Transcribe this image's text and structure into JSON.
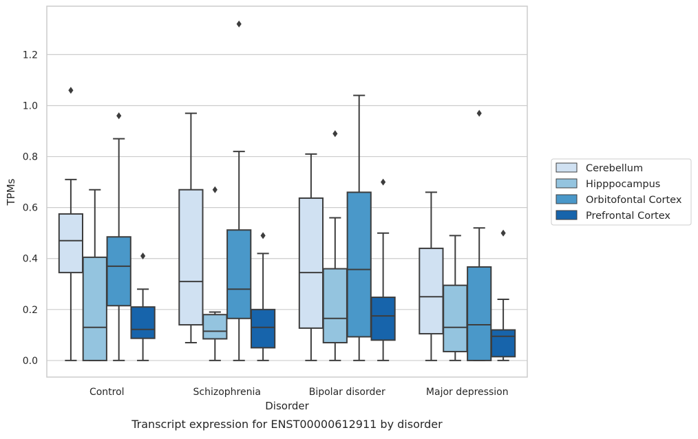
{
  "chart_data": {
    "type": "boxplot",
    "title": "",
    "caption": "Transcript expression for ENST00000612911 by disorder",
    "xlabel": "Disorder",
    "ylabel": "TPMs",
    "ylim": [
      -0.065,
      1.39
    ],
    "yticks": [
      0.0,
      0.2,
      0.4,
      0.6,
      0.8,
      1.0,
      1.2
    ],
    "ytick_labels": [
      "0.0",
      "0.2",
      "0.4",
      "0.6",
      "0.8",
      "1.0",
      "1.2"
    ],
    "grid": "horizontal",
    "legend_position": "outside-right",
    "categories": [
      "Control",
      "Schizophrenia",
      "Bipolar disorder",
      "Major depression"
    ],
    "series": [
      {
        "name": "Cerebellum",
        "color": "#d0e1f2",
        "boxes": [
          {
            "whisker_low": 0.0,
            "q1": 0.345,
            "median": 0.47,
            "q3": 0.575,
            "whisker_high": 0.71,
            "outliers": [
              1.06
            ]
          },
          {
            "whisker_low": 0.07,
            "q1": 0.14,
            "median": 0.31,
            "q3": 0.67,
            "whisker_high": 0.97,
            "outliers": []
          },
          {
            "whisker_low": 0.0,
            "q1": 0.127,
            "median": 0.345,
            "q3": 0.637,
            "whisker_high": 0.81,
            "outliers": []
          },
          {
            "whisker_low": 0.0,
            "q1": 0.105,
            "median": 0.25,
            "q3": 0.44,
            "whisker_high": 0.66,
            "outliers": []
          }
        ]
      },
      {
        "name": "Hipppocampus",
        "color": "#94c4df",
        "boxes": [
          {
            "whisker_low": 0.0,
            "q1": 0.0,
            "median": 0.13,
            "q3": 0.405,
            "whisker_high": 0.67,
            "outliers": []
          },
          {
            "whisker_low": 0.0,
            "q1": 0.085,
            "median": 0.115,
            "q3": 0.18,
            "whisker_high": 0.19,
            "outliers": [
              0.67
            ]
          },
          {
            "whisker_low": 0.0,
            "q1": 0.07,
            "median": 0.165,
            "q3": 0.36,
            "whisker_high": 0.56,
            "outliers": [
              0.89
            ]
          },
          {
            "whisker_low": 0.0,
            "q1": 0.035,
            "median": 0.13,
            "q3": 0.295,
            "whisker_high": 0.49,
            "outliers": []
          }
        ]
      },
      {
        "name": "Orbitofontal Cortex",
        "color": "#4a98c9",
        "boxes": [
          {
            "whisker_low": 0.0,
            "q1": 0.215,
            "median": 0.37,
            "q3": 0.485,
            "whisker_high": 0.87,
            "outliers": [
              0.96
            ]
          },
          {
            "whisker_low": 0.0,
            "q1": 0.165,
            "median": 0.28,
            "q3": 0.512,
            "whisker_high": 0.82,
            "outliers": [
              1.32
            ]
          },
          {
            "whisker_low": 0.0,
            "q1": 0.093,
            "median": 0.357,
            "q3": 0.66,
            "whisker_high": 1.04,
            "outliers": []
          },
          {
            "whisker_low": 0.0,
            "q1": 0.0,
            "median": 0.14,
            "q3": 0.367,
            "whisker_high": 0.52,
            "outliers": [
              0.97
            ]
          }
        ]
      },
      {
        "name": "Prefrontal Cortex",
        "color": "#1764ab",
        "boxes": [
          {
            "whisker_low": 0.0,
            "q1": 0.087,
            "median": 0.122,
            "q3": 0.21,
            "whisker_high": 0.28,
            "outliers": [
              0.41
            ]
          },
          {
            "whisker_low": 0.0,
            "q1": 0.05,
            "median": 0.13,
            "q3": 0.2,
            "whisker_high": 0.42,
            "outliers": [
              0.49
            ]
          },
          {
            "whisker_low": 0.0,
            "q1": 0.08,
            "median": 0.175,
            "q3": 0.248,
            "whisker_high": 0.5,
            "outliers": [
              0.7
            ]
          },
          {
            "whisker_low": 0.0,
            "q1": 0.015,
            "median": 0.095,
            "q3": 0.12,
            "whisker_high": 0.24,
            "outliers": [
              0.5
            ]
          }
        ]
      }
    ]
  }
}
